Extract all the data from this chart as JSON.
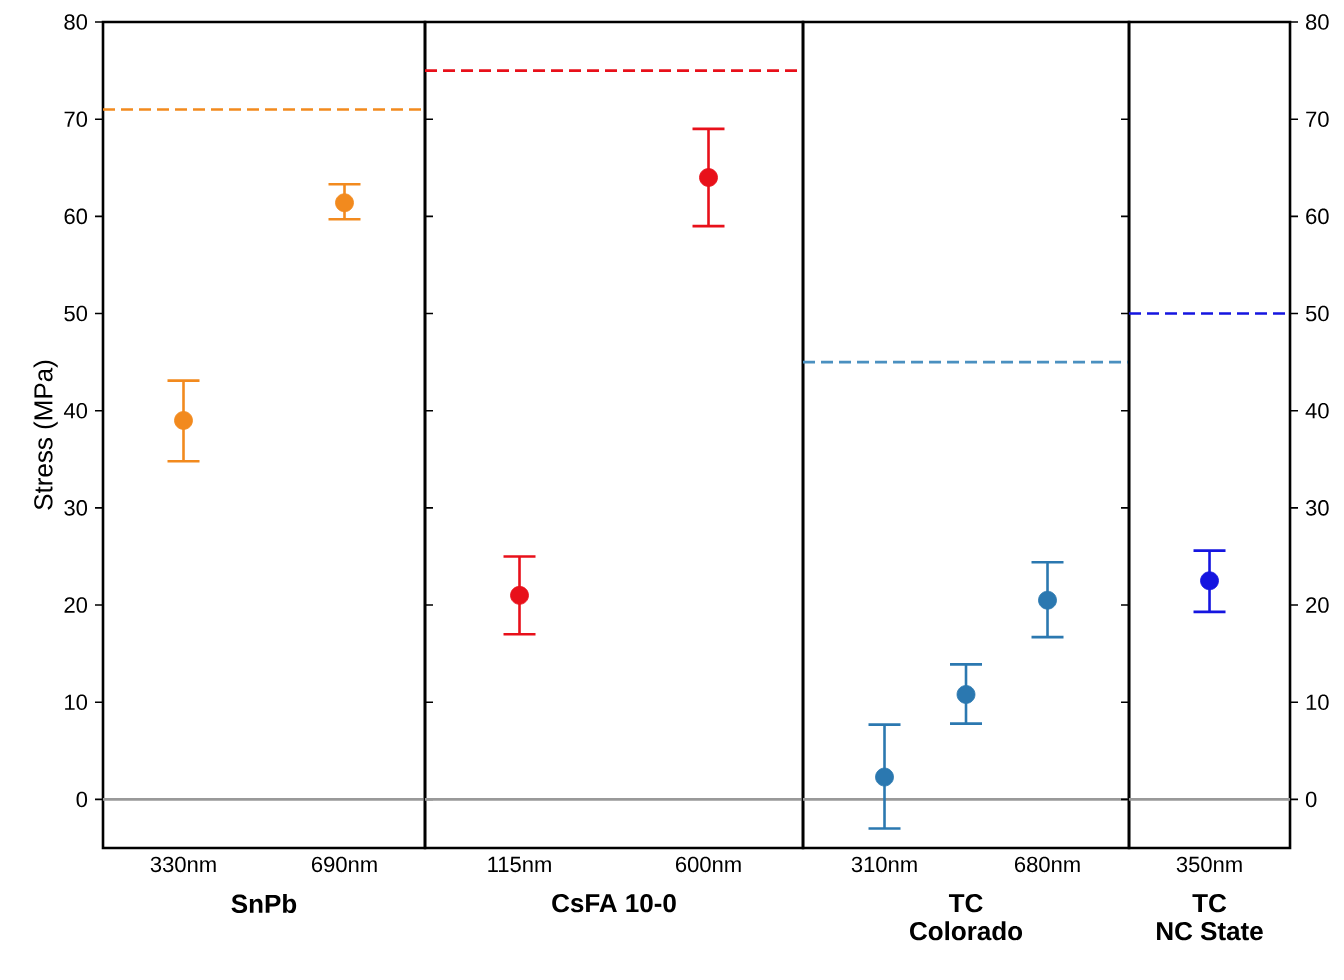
{
  "chart_data": [
    {
      "type": "scatter",
      "xlabel": "SnPb",
      "ylabel": "Stress (MPa)",
      "categories": [
        "330nm",
        "690nm"
      ],
      "marker": "circle",
      "ylim": [
        -5,
        80
      ],
      "yticks": [
        0,
        10,
        20,
        30,
        40,
        50,
        60,
        70,
        80
      ],
      "series": [
        {
          "color": "#f28a1e",
          "values": [
            39,
            61.4
          ],
          "errors": [
            [
              34.8,
              43.1
            ],
            [
              59.7,
              63.3
            ]
          ]
        }
      ],
      "ref_lines": [
        {
          "axis": "y",
          "value": 71,
          "color": "#f28a1e",
          "line_style": "dashed"
        },
        {
          "axis": "y",
          "value": 0,
          "color": "#999999",
          "line_style": "solid"
        }
      ]
    },
    {
      "type": "scatter",
      "xlabel": "CsFA 10-0",
      "categories": [
        "115nm",
        "600nm"
      ],
      "marker": "circle",
      "ylim": [
        -5,
        80
      ],
      "tick_labels": "x",
      "series": [
        {
          "color": "#e8101a",
          "values": [
            21,
            64
          ],
          "errors": [
            [
              17,
              25
            ],
            [
              59,
              69
            ]
          ]
        }
      ],
      "ref_lines": [
        {
          "axis": "y",
          "value": 75,
          "color": "#e8101a",
          "line_style": "dashed"
        },
        {
          "axis": "y",
          "value": 0,
          "color": "#999999",
          "line_style": "solid"
        }
      ]
    },
    {
      "type": "scatter",
      "xlabel": "TC\nColorado",
      "categories": [
        "310nm",
        null,
        "680nm"
      ],
      "marker": "circle",
      "ylim": [
        -5,
        80
      ],
      "tick_labels": "x",
      "series": [
        {
          "color": "#2b78b0",
          "values": [
            2.3,
            10.8,
            20.5
          ],
          "errors": [
            [
              -3,
              7.7
            ],
            [
              7.8,
              13.9
            ],
            [
              16.7,
              24.4
            ]
          ]
        }
      ],
      "ref_lines": [
        {
          "axis": "y",
          "value": 45,
          "color": "#4a90c0",
          "line_style": "dashed"
        },
        {
          "axis": "y",
          "value": 0,
          "color": "#999999",
          "line_style": "solid"
        }
      ]
    },
    {
      "type": "scatter",
      "xlabel": "TC\nNC State",
      "categories": [
        "350nm"
      ],
      "marker": "circle",
      "ylim": [
        -5,
        80
      ],
      "yticks": [
        0,
        10,
        20,
        30,
        40,
        50,
        60,
        70,
        80
      ],
      "series": [
        {
          "color": "#1515e0",
          "values": [
            22.5
          ],
          "errors": [
            [
              19.3,
              25.6
            ]
          ]
        }
      ],
      "ref_lines": [
        {
          "axis": "y",
          "value": 50,
          "color": "#1515e0",
          "line_style": "dashed"
        },
        {
          "axis": "y",
          "value": 0,
          "color": "#999999",
          "line_style": "solid"
        }
      ]
    }
  ]
}
